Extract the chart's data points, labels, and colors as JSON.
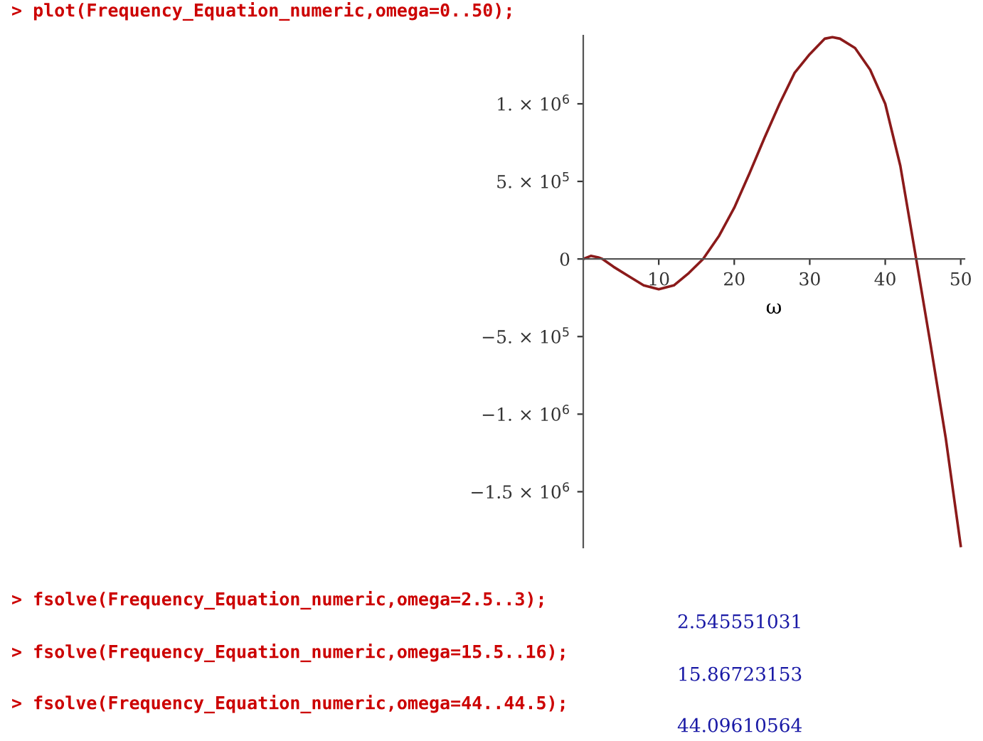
{
  "chart_data": {
    "type": "line",
    "xlabel": "ω",
    "x": [
      0,
      1,
      2,
      2.55,
      4,
      6,
      8,
      10,
      12,
      14,
      15.87,
      18,
      20,
      22,
      24,
      26,
      28,
      30,
      32,
      33,
      34,
      36,
      38,
      40,
      42,
      44.1,
      46,
      48,
      50
    ],
    "series": [
      {
        "color": "#8b1a1a",
        "values": [
          0,
          20000,
          10000,
          0,
          -50000,
          -110000,
          -170000,
          -195000,
          -170000,
          -90000,
          0,
          150000,
          330000,
          550000,
          780000,
          1000000,
          1200000,
          1320000,
          1420000,
          1430000,
          1420000,
          1360000,
          1220000,
          1000000,
          600000,
          0,
          -550000,
          -1150000,
          -1850000
        ]
      }
    ],
    "xlim": [
      0,
      50.5
    ],
    "xticks": [
      10,
      20,
      30,
      40,
      50
    ],
    "ylim": [
      -1860000,
      1440000
    ],
    "yticks": [
      {
        "value": -1500000,
        "label": "−1.5 × 10$^{6}$"
      },
      {
        "value": -1000000,
        "label": "−1. × 10$^{6}$"
      },
      {
        "value": -500000,
        "label": "−5. × 10$^{5}$"
      },
      0,
      {
        "value": 500000,
        "label": "5. × 10$^{5}$"
      },
      {
        "value": 1000000,
        "label": "1. × 10$^{6}$"
      }
    ],
    "grid": false,
    "line_style": "solid",
    "marker": "none",
    "annotations": [
      "> plot(Frequency_Equation_numeric,omega=0..50);",
      "> fsolve(Frequency_Equation_numeric,omega=2.5..3);",
      "2.545551031",
      "> fsolve(Frequency_Equation_numeric,omega=15.5..16);",
      "15.86723153",
      "> fsolve(Frequency_Equation_numeric,omega=44..44.5);",
      "44.09610564"
    ]
  }
}
